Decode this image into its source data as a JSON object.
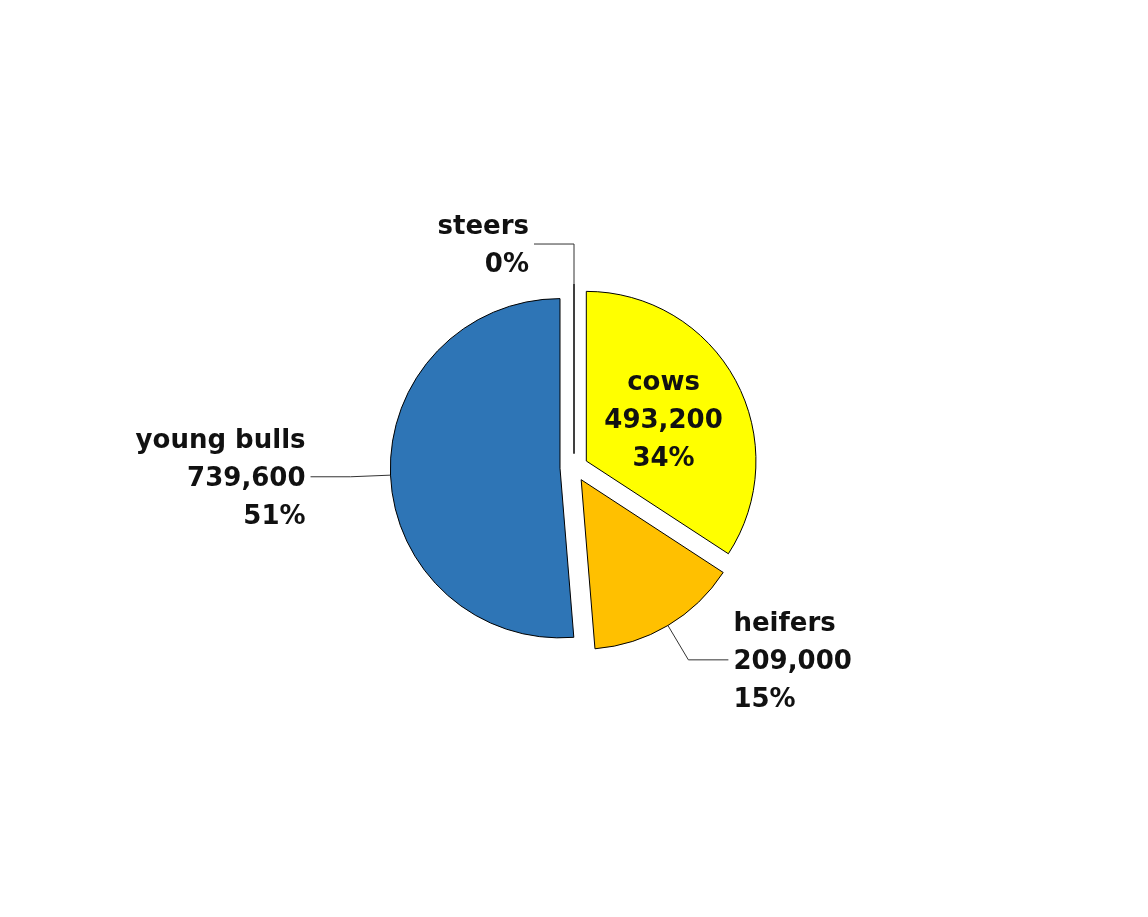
{
  "chart_data": {
    "type": "pie",
    "categories": [
      "cows",
      "heifers",
      "young bulls",
      "steers"
    ],
    "values": [
      493200,
      209000,
      739600,
      0
    ],
    "value_labels": [
      "493,200\n34%",
      "209,000\n15%",
      "739,600\n51%",
      "0%"
    ],
    "colors": [
      "#ffff00",
      "#ffc000",
      "#2e75b6",
      "#a5a5a5"
    ],
    "legend": false
  }
}
